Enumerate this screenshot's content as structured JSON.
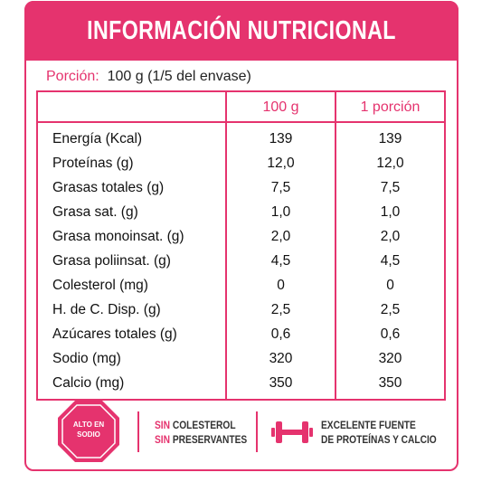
{
  "header": {
    "title": "INFORMACIÓN NUTRICIONAL"
  },
  "portion": {
    "label": "Porción:",
    "value": "100 g (1/5 del envase)"
  },
  "table": {
    "columns": [
      "100 g",
      "1 porción"
    ],
    "rows": [
      [
        "Energía (Kcal)",
        "139",
        "139"
      ],
      [
        "Proteínas (g)",
        "12,0",
        "12,0"
      ],
      [
        "Grasas totales (g)",
        "7,5",
        "7,5"
      ],
      [
        "Grasa sat. (g)",
        "1,0",
        "1,0"
      ],
      [
        "Grasa monoinsat. (g)",
        "2,0",
        "2,0"
      ],
      [
        "Grasa poliinsat. (g)",
        "4,5",
        "4,5"
      ],
      [
        "Colesterol (mg)",
        "0",
        "0"
      ],
      [
        "H. de C. Disp. (g)",
        "2,5",
        "2,5"
      ],
      [
        "Azúcares totales (g)",
        "0,6",
        "0,6"
      ],
      [
        "Sodio (mg)",
        "320",
        "320"
      ],
      [
        "Calcio (mg)",
        "350",
        "350"
      ]
    ]
  },
  "badges": {
    "stop_sign": [
      "ALTO EN",
      "SODIO"
    ],
    "claims": [
      {
        "prefix": "SIN",
        "text": "COLESTEROL"
      },
      {
        "prefix": "SIN",
        "text": "PRESERVANTES"
      }
    ],
    "source": [
      "EXCELENTE FUENTE",
      "DE PROTEÍNAS Y CALCIO"
    ]
  }
}
